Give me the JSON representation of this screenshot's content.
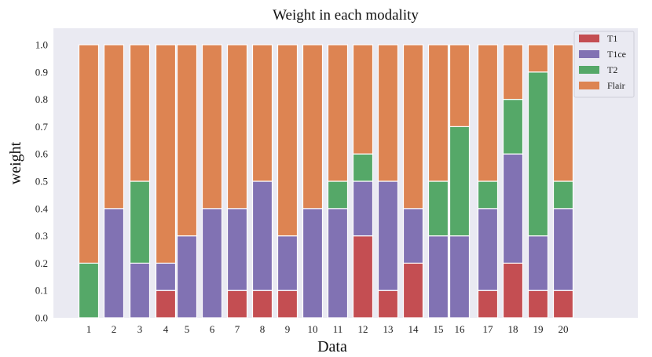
{
  "chart_data": {
    "type": "bar",
    "stacked": true,
    "title": "Weight in each modality",
    "xlabel": "Data",
    "ylabel": "weight",
    "ylim": [
      0,
      1.05
    ],
    "yticks": [
      "0.0",
      "0.1",
      "0.2",
      "0.3",
      "0.4",
      "0.5",
      "0.6",
      "0.7",
      "0.8",
      "0.9",
      "1.0"
    ],
    "categories": [
      "1",
      "2",
      "3",
      "4",
      "5",
      "6",
      "7",
      "8",
      "9",
      "10",
      "11",
      "12",
      "13",
      "14",
      "15",
      "16",
      "17",
      "18",
      "19",
      "20"
    ],
    "legend_position": "top-right",
    "grid": false,
    "background": "#eaeaf2",
    "series": [
      {
        "name": "T1",
        "color": "#c44e52",
        "values": [
          0,
          0,
          0,
          0.1,
          0,
          0,
          0.1,
          0.1,
          0.1,
          0,
          0,
          0.3,
          0.1,
          0.2,
          0,
          0,
          0.1,
          0.2,
          0.1,
          0.1
        ]
      },
      {
        "name": "T1ce",
        "color": "#8172b3",
        "values": [
          0,
          0.4,
          0.2,
          0.1,
          0.3,
          0.4,
          0.3,
          0.4,
          0.2,
          0.4,
          0.4,
          0.2,
          0.4,
          0.2,
          0.3,
          0.3,
          0.3,
          0.4,
          0.2,
          0.3
        ]
      },
      {
        "name": "T2",
        "color": "#55a868",
        "values": [
          0.2,
          0,
          0.3,
          0,
          0,
          0,
          0,
          0,
          0,
          0,
          0.1,
          0.1,
          0,
          0,
          0.2,
          0.4,
          0.1,
          0.2,
          0.6,
          0.1
        ]
      },
      {
        "name": "Flair",
        "color": "#dd8452",
        "values": [
          0.8,
          0.6,
          0.5,
          0.8,
          0.7,
          0.6,
          0.6,
          0.5,
          0.7,
          0.6,
          0.5,
          0.4,
          0.5,
          0.6,
          0.5,
          0.3,
          0.5,
          0.2,
          0.1,
          0.5
        ]
      }
    ]
  }
}
